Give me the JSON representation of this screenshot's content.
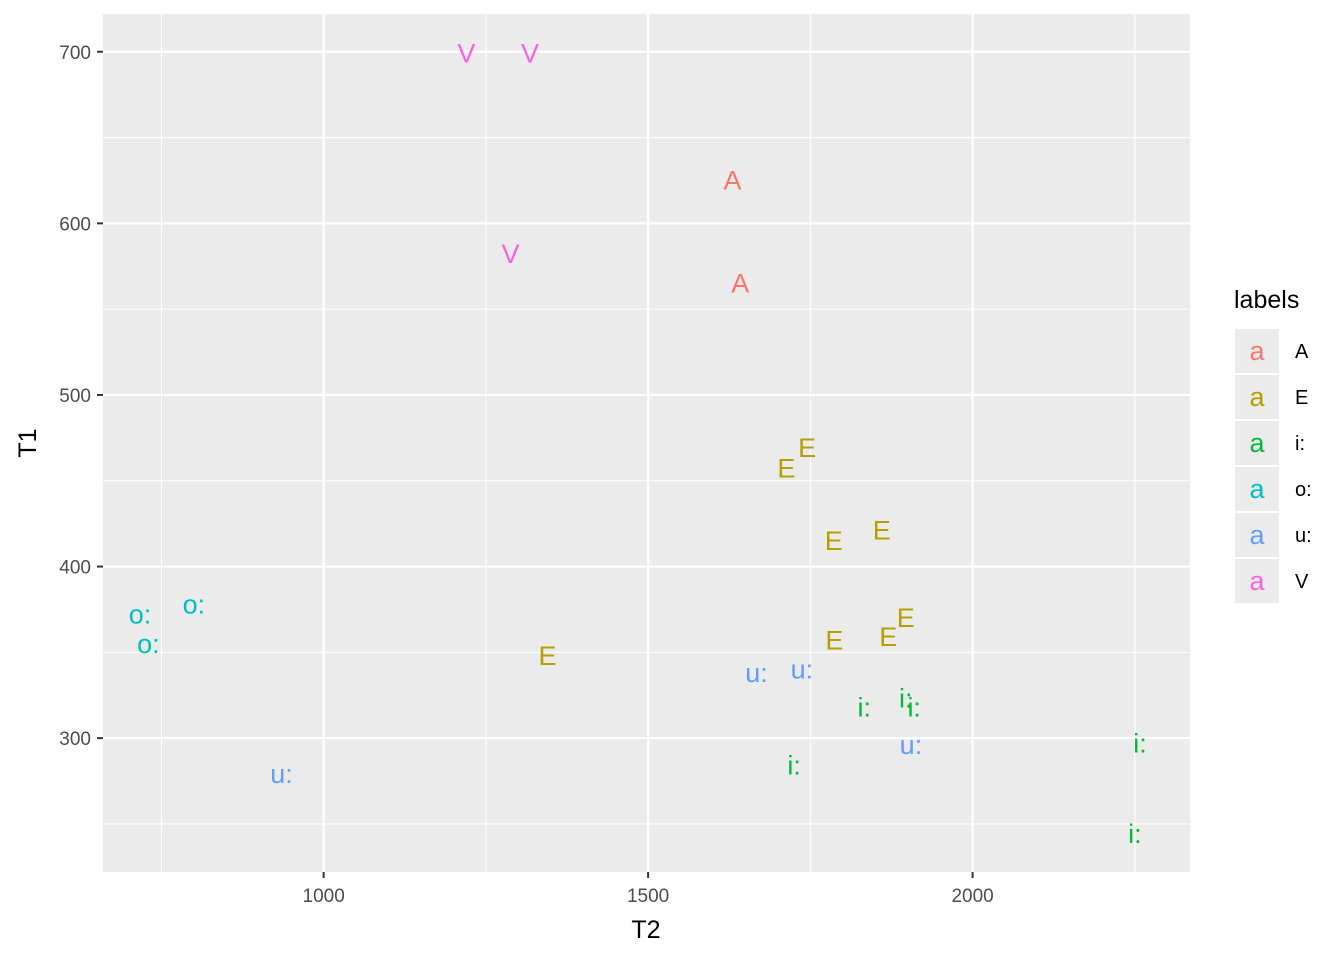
{
  "chart_data": {
    "type": "scatter",
    "title": "",
    "xlabel": "T2",
    "ylabel": "T1",
    "xlim": [
      660,
      2335
    ],
    "ylim": [
      222,
      722
    ],
    "x_ticks": [
      1000,
      1500,
      2000
    ],
    "y_ticks": [
      300,
      400,
      500,
      600,
      700
    ],
    "x_tick_labels": [
      "1000",
      "1500",
      "2000"
    ],
    "y_tick_labels": [
      "300",
      "400",
      "500",
      "600",
      "700"
    ],
    "grid": true,
    "legend_placement": "right",
    "legend_title": "labels",
    "legend_key_glyph": "a",
    "series": [
      {
        "name": "A",
        "color": "#F8766D",
        "points": [
          [
            1630,
            625
          ],
          [
            1642,
            565
          ]
        ]
      },
      {
        "name": "E",
        "color": "#B79F00",
        "points": [
          [
            1745,
            469
          ],
          [
            1713,
            457
          ],
          [
            1860,
            421
          ],
          [
            1786,
            415
          ],
          [
            1897,
            370
          ],
          [
            1787,
            357
          ],
          [
            1870,
            359
          ],
          [
            1345,
            348
          ]
        ]
      },
      {
        "name": "i:",
        "color": "#00BA38",
        "points": [
          [
            1897,
            323
          ],
          [
            1910,
            318
          ],
          [
            1833,
            318
          ],
          [
            1725,
            284
          ],
          [
            2258,
            297
          ],
          [
            2250,
            244
          ]
        ]
      },
      {
        "name": "o:",
        "color": "#00BFC4",
        "points": [
          [
            717,
            372
          ],
          [
            800,
            378
          ],
          [
            730,
            355
          ]
        ]
      },
      {
        "name": "u:",
        "color": "#619CFF",
        "points": [
          [
            1667,
            338
          ],
          [
            1737,
            340
          ],
          [
            1905,
            296
          ],
          [
            935,
            279
          ]
        ]
      },
      {
        "name": "V",
        "color": "#F564E3",
        "points": [
          [
            1220,
            699
          ],
          [
            1318,
            699
          ],
          [
            1288,
            582
          ]
        ]
      }
    ]
  }
}
